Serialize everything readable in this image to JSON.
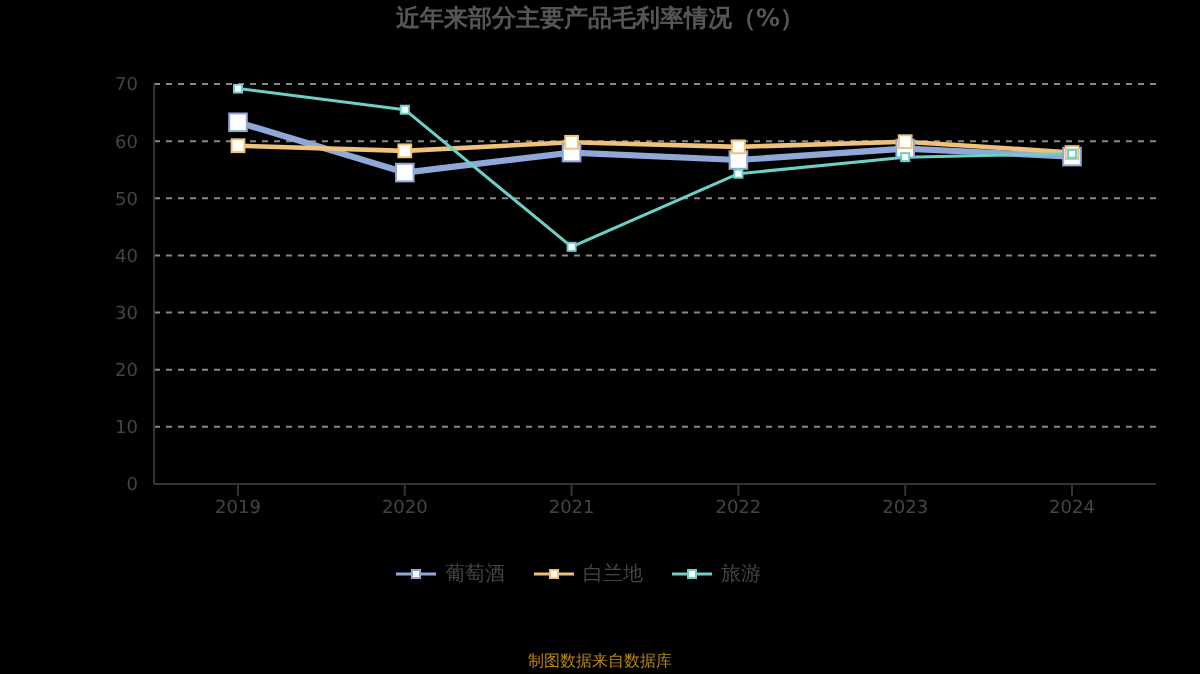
{
  "chart_data": {
    "type": "line",
    "title": "近年来部分主要产品毛利率情况（%）",
    "categories": [
      "2019",
      "2020",
      "2021",
      "2022",
      "2023",
      "2024"
    ],
    "series": [
      {
        "name": "葡萄酒",
        "color": "#8fa8d8",
        "values": [
          63.3,
          54.5,
          58.0,
          56.7,
          58.7,
          57.3
        ]
      },
      {
        "name": "白兰地",
        "color": "#eec27a",
        "values": [
          59.2,
          58.3,
          59.8,
          59.0,
          59.9,
          58.0
        ]
      },
      {
        "name": "旅游",
        "color": "#6ccfc8",
        "values": [
          69.2,
          65.5,
          41.5,
          54.3,
          57.2,
          57.8
        ]
      }
    ],
    "ylim": [
      0,
      70
    ],
    "yticks": [
      0,
      10,
      20,
      30,
      40,
      50,
      60,
      70
    ],
    "grid": "y",
    "legend": "bottom",
    "marker": "square",
    "line_style": "solid",
    "annotations": [
      "制图数据来自数据库"
    ]
  }
}
